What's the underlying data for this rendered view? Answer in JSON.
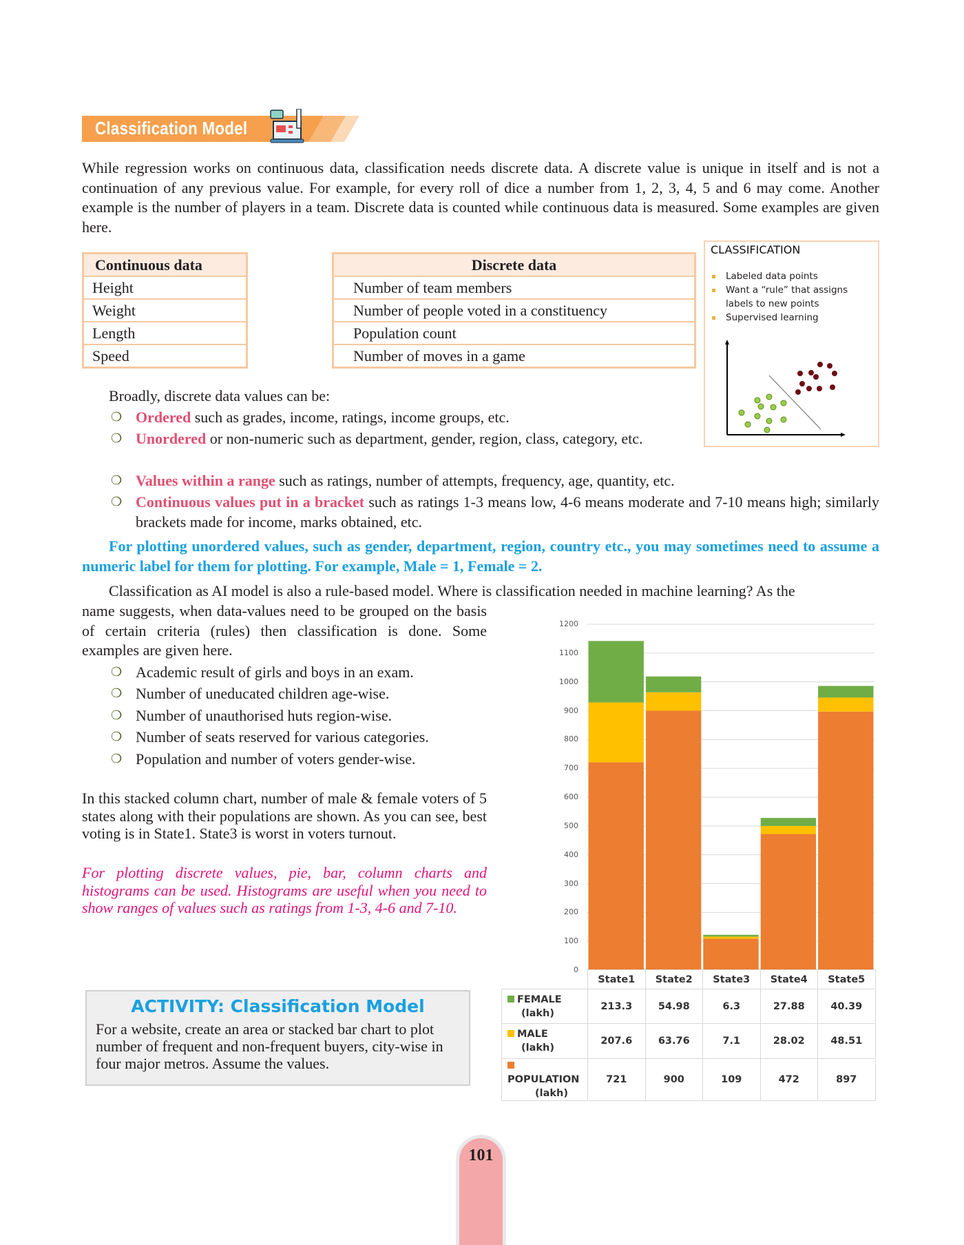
{
  "header": {
    "title": "Classification Model",
    "icon": "laptop-pencil-icon"
  },
  "intro": "While regression works on continuous data, classification needs discrete data. A discrete value is unique in itself and is not a continuation of any previous value. For example, for every roll of dice a number from 1, 2, 3, 4, 5 and 6 may come. Another example is the number of players in a team. Discrete data is counted while continuous data is measured. Some examples are given here.",
  "continuous_table": {
    "header": "Continuous data",
    "rows": [
      "Height",
      "Weight",
      "Length",
      "Speed"
    ]
  },
  "discrete_table": {
    "header": "Discrete data",
    "rows": [
      "Number of team members",
      "Number of people voted in a constituency",
      "Population count",
      "Number of moves in a game"
    ]
  },
  "classification_box": {
    "title": "CLASSIFICATION",
    "bullets": [
      "Labeled data points",
      "Want a “rule” that assigns labels to new points",
      "Supervised learning"
    ]
  },
  "broadly": "Broadly, discrete data values can be:",
  "types": [
    {
      "term": "Ordered",
      "text": " such as grades, income, ratings, income groups, etc."
    },
    {
      "term": "Unordered",
      "text": " or non-numeric such as department, gender, region, class, category, etc."
    },
    {
      "term": "Values within a range",
      "text": " such as ratings, number of attempts, frequency, age, quantity, etc."
    },
    {
      "term": "Continuous values put in a bracket",
      "text": " such as ratings 1-3 means low, 4-6 means moderate and 7-10 means high; similarly brackets made for income, marks obtained, etc."
    }
  ],
  "note_blue": "For plotting unordered values, such as gender, department, region, country etc., you may sometimes need to assume a numeric label for them for plotting. For example, Male = 1, Female = 2.",
  "para2_first": "Classification as AI model is also a rule-based model. Where is classification needed in machine learning? As the",
  "para2_rest": "name suggests, when data-values need to be grouped on the basis of certain criteria (rules) then classification is done. Some examples are given here.",
  "examples": [
    "Academic result of girls and boys in an exam.",
    "Number of uneducated children age-wise.",
    "Number of unauthorised huts region-wise.",
    "Number of seats reserved for various categories.",
    "Population and number of voters gender-wise."
  ],
  "chart_para": "In this stacked column chart, number of male & female voters of 5 states along with their populations are shown. As you can see, best voting is in State1. State3 is worst in voters turnout.",
  "note_pink": "For plotting discrete values, pie, bar, column charts and histograms can be used. Histograms are useful when you need to show ranges of values such as ratings from 1-3, 4-6 and 7-10.",
  "activity": {
    "title": "ACTIVITY: Classification Model",
    "text": "For a website, create an area or stacked bar chart to plot number of frequent and non-frequent buyers, city-wise in four major metros.  Assume the values."
  },
  "chart_data": {
    "type": "bar",
    "stacked": true,
    "categories": [
      "State1",
      "State2",
      "State3",
      "State4",
      "State5"
    ],
    "series": [
      {
        "name": "POPULATION",
        "unit": "(lakh)",
        "color": "#ed7d31",
        "values": [
          721,
          900,
          109,
          472,
          897
        ]
      },
      {
        "name": "MALE",
        "unit": "(lakh)",
        "color": "#ffc000",
        "values": [
          207.6,
          63.76,
          7.1,
          28.02,
          48.51
        ]
      },
      {
        "name": "FEMALE",
        "unit": "(lakh)",
        "color": "#70ad47",
        "values": [
          213.3,
          54.98,
          6.3,
          27.88,
          40.39
        ]
      }
    ],
    "ylim": [
      0,
      1200
    ],
    "yticks": [
      "0",
      "100",
      "200",
      "300",
      "400",
      "500",
      "600",
      "700",
      "800",
      "900",
      "1000",
      "1100",
      "1200"
    ],
    "grid": true,
    "legend": "data-table"
  },
  "page_number": "101"
}
